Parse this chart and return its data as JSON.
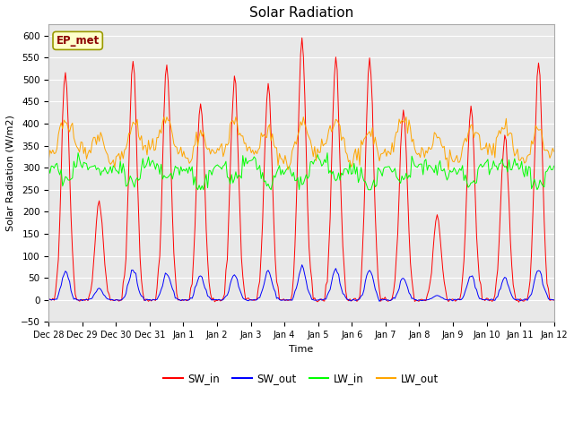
{
  "title": "Solar Radiation",
  "xlabel": "Time",
  "ylabel": "Solar Radiation (W/m2)",
  "ylim": [
    -50,
    625
  ],
  "yticks": [
    -50,
    0,
    50,
    100,
    150,
    200,
    250,
    300,
    350,
    400,
    450,
    500,
    550,
    600
  ],
  "legend_label": "EP_met",
  "series_labels": [
    "SW_in",
    "SW_out",
    "LW_in",
    "LW_out"
  ],
  "series_colors": [
    "#ff0000",
    "#0000ff",
    "#00ff00",
    "#ffa500"
  ],
  "fig_bg": "#ffffff",
  "plot_bg": "#e8e8e8",
  "grid_color": "#ffffff",
  "n_days": 15,
  "hours_per_day": 24,
  "tick_labels": [
    "Dec 28",
    "Dec 29",
    "Dec 30",
    "Dec 31",
    "Jan 1",
    "Jan 2",
    "Jan 3",
    "Jan 4",
    "Jan 5",
    "Jan 6",
    "Jan 7",
    "Jan 8",
    "Jan 9",
    "Jan 10",
    "Jan 11",
    "Jan 12"
  ],
  "sw_peaks": [
    520,
    225,
    535,
    535,
    450,
    510,
    485,
    590,
    550,
    550,
    435,
    190,
    435,
    375,
    535
  ],
  "sw_out_peaks": [
    65,
    25,
    70,
    60,
    55,
    60,
    65,
    75,
    70,
    70,
    50,
    10,
    55,
    50,
    70
  ]
}
